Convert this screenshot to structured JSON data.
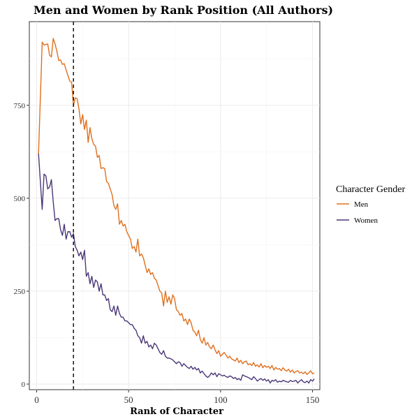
{
  "chart_data": {
    "type": "line",
    "title": "Men and Women by Rank Position (All Authors)",
    "xlabel": "Rank of Character",
    "ylabel": "",
    "xlim": [
      -4,
      154
    ],
    "ylim": [
      -15,
      975
    ],
    "xticks": [
      0,
      50,
      100,
      150
    ],
    "yticks": [
      0,
      250,
      500,
      750
    ],
    "grid": true,
    "reference_line": {
      "x": 20,
      "style": "dashed"
    },
    "legend": {
      "title": "Character Gender",
      "position": "right"
    },
    "series": [
      {
        "name": "Men",
        "color": "#e0701e",
        "points": [
          [
            1,
            620
          ],
          [
            3,
            920
          ],
          [
            4,
            912
          ],
          [
            6,
            915
          ],
          [
            7,
            885
          ],
          [
            8,
            880
          ],
          [
            9,
            930
          ],
          [
            10,
            915
          ],
          [
            11,
            895
          ],
          [
            12,
            870
          ],
          [
            13,
            872
          ],
          [
            14,
            860
          ],
          [
            15,
            862
          ],
          [
            16,
            845
          ],
          [
            17,
            830
          ],
          [
            18,
            815
          ],
          [
            19,
            812
          ],
          [
            20,
            750
          ],
          [
            21,
            770
          ],
          [
            22,
            768
          ],
          [
            23,
            740
          ],
          [
            24,
            700
          ],
          [
            25,
            725
          ],
          [
            26,
            685
          ],
          [
            27,
            710
          ],
          [
            28,
            650
          ],
          [
            29,
            690
          ],
          [
            30,
            660
          ],
          [
            31,
            645
          ],
          [
            32,
            640
          ],
          [
            33,
            610
          ],
          [
            34,
            615
          ],
          [
            35,
            580
          ],
          [
            36,
            582
          ],
          [
            37,
            580
          ],
          [
            38,
            545
          ],
          [
            39,
            540
          ],
          [
            40,
            525
          ],
          [
            41,
            510
          ],
          [
            42,
            480
          ],
          [
            43,
            470
          ],
          [
            44,
            485
          ],
          [
            45,
            430
          ],
          [
            46,
            440
          ],
          [
            47,
            425
          ],
          [
            48,
            430
          ],
          [
            49,
            410
          ],
          [
            50,
            400
          ],
          [
            51,
            390
          ],
          [
            52,
            365
          ],
          [
            53,
            370
          ],
          [
            54,
            355
          ],
          [
            55,
            390
          ],
          [
            56,
            345
          ],
          [
            57,
            350
          ],
          [
            58,
            340
          ],
          [
            59,
            320
          ],
          [
            60,
            300
          ],
          [
            61,
            310
          ],
          [
            62,
            295
          ],
          [
            63,
            300
          ],
          [
            64,
            285
          ],
          [
            65,
            280
          ],
          [
            66,
            265
          ],
          [
            67,
            250
          ],
          [
            68,
            245
          ],
          [
            69,
            210
          ],
          [
            70,
            250
          ],
          [
            71,
            220
          ],
          [
            72,
            235
          ],
          [
            73,
            215
          ],
          [
            74,
            240
          ],
          [
            75,
            230
          ],
          [
            76,
            200
          ],
          [
            77,
            195
          ],
          [
            78,
            185
          ],
          [
            79,
            190
          ],
          [
            80,
            170
          ],
          [
            81,
            175
          ],
          [
            82,
            160
          ],
          [
            83,
            175
          ],
          [
            84,
            165
          ],
          [
            85,
            145
          ],
          [
            86,
            140
          ],
          [
            87,
            130
          ],
          [
            88,
            145
          ],
          [
            89,
            120
          ],
          [
            90,
            110
          ],
          [
            91,
            125
          ],
          [
            92,
            105
          ],
          [
            93,
            112
          ],
          [
            94,
            100
          ],
          [
            95,
            95
          ],
          [
            96,
            105
          ],
          [
            97,
            92
          ],
          [
            98,
            82
          ],
          [
            99,
            90
          ],
          [
            100,
            75
          ],
          [
            101,
            80
          ],
          [
            102,
            85
          ],
          [
            103,
            78
          ],
          [
            104,
            70
          ],
          [
            105,
            75
          ],
          [
            106,
            68
          ],
          [
            107,
            65
          ],
          [
            108,
            62
          ],
          [
            109,
            70
          ],
          [
            110,
            58
          ],
          [
            111,
            64
          ],
          [
            112,
            55
          ],
          [
            113,
            60
          ],
          [
            114,
            62
          ],
          [
            115,
            52
          ],
          [
            116,
            55
          ],
          [
            117,
            50
          ],
          [
            118,
            58
          ],
          [
            119,
            48
          ],
          [
            120,
            52
          ],
          [
            121,
            46
          ],
          [
            122,
            55
          ],
          [
            123,
            44
          ],
          [
            124,
            50
          ],
          [
            125,
            45
          ],
          [
            126,
            48
          ],
          [
            127,
            42
          ],
          [
            128,
            50
          ],
          [
            129,
            38
          ],
          [
            130,
            45
          ],
          [
            131,
            40
          ],
          [
            132,
            42
          ],
          [
            133,
            36
          ],
          [
            134,
            44
          ],
          [
            135,
            38
          ],
          [
            136,
            35
          ],
          [
            137,
            40
          ],
          [
            138,
            32
          ],
          [
            139,
            38
          ],
          [
            140,
            30
          ],
          [
            141,
            34
          ],
          [
            142,
            36
          ],
          [
            143,
            30
          ],
          [
            144,
            32
          ],
          [
            145,
            28
          ],
          [
            146,
            33
          ],
          [
            147,
            26
          ],
          [
            148,
            30
          ],
          [
            149,
            36
          ],
          [
            150,
            28
          ],
          [
            151,
            30
          ]
        ]
      },
      {
        "name": "Women",
        "color": "#4b3778",
        "points": [
          [
            1,
            620
          ],
          [
            3,
            470
          ],
          [
            4,
            565
          ],
          [
            5,
            560
          ],
          [
            6,
            525
          ],
          [
            7,
            530
          ],
          [
            8,
            550
          ],
          [
            9,
            490
          ],
          [
            10,
            440
          ],
          [
            11,
            445
          ],
          [
            12,
            445
          ],
          [
            13,
            415
          ],
          [
            14,
            400
          ],
          [
            15,
            430
          ],
          [
            16,
            390
          ],
          [
            17,
            410
          ],
          [
            18,
            410
          ],
          [
            19,
            395
          ],
          [
            20,
            405
          ],
          [
            21,
            370
          ],
          [
            22,
            360
          ],
          [
            23,
            345
          ],
          [
            24,
            355
          ],
          [
            25,
            335
          ],
          [
            26,
            360
          ],
          [
            27,
            290
          ],
          [
            28,
            300
          ],
          [
            29,
            270
          ],
          [
            30,
            290
          ],
          [
            31,
            260
          ],
          [
            32,
            280
          ],
          [
            33,
            275
          ],
          [
            34,
            250
          ],
          [
            35,
            270
          ],
          [
            36,
            240
          ],
          [
            37,
            240
          ],
          [
            38,
            225
          ],
          [
            39,
            230
          ],
          [
            40,
            200
          ],
          [
            41,
            195
          ],
          [
            42,
            210
          ],
          [
            43,
            185
          ],
          [
            44,
            210
          ],
          [
            45,
            190
          ],
          [
            46,
            180
          ],
          [
            47,
            180
          ],
          [
            48,
            170
          ],
          [
            49,
            170
          ],
          [
            50,
            165
          ],
          [
            51,
            160
          ],
          [
            52,
            160
          ],
          [
            53,
            150
          ],
          [
            54,
            145
          ],
          [
            55,
            130
          ],
          [
            56,
            125
          ],
          [
            57,
            110
          ],
          [
            58,
            130
          ],
          [
            59,
            110
          ],
          [
            60,
            115
          ],
          [
            61,
            100
          ],
          [
            62,
            105
          ],
          [
            63,
            95
          ],
          [
            64,
            110
          ],
          [
            65,
            105
          ],
          [
            66,
            95
          ],
          [
            67,
            85
          ],
          [
            68,
            80
          ],
          [
            69,
            90
          ],
          [
            70,
            75
          ],
          [
            71,
            70
          ],
          [
            72,
            70
          ],
          [
            73,
            68
          ],
          [
            74,
            65
          ],
          [
            75,
            60
          ],
          [
            76,
            55
          ],
          [
            77,
            60
          ],
          [
            78,
            58
          ],
          [
            79,
            48
          ],
          [
            80,
            55
          ],
          [
            81,
            50
          ],
          [
            82,
            45
          ],
          [
            83,
            42
          ],
          [
            84,
            48
          ],
          [
            85,
            40
          ],
          [
            86,
            45
          ],
          [
            87,
            38
          ],
          [
            88,
            42
          ],
          [
            89,
            30
          ],
          [
            90,
            35
          ],
          [
            91,
            28
          ],
          [
            92,
            22
          ],
          [
            93,
            18
          ],
          [
            94,
            22
          ],
          [
            95,
            30
          ],
          [
            96,
            25
          ],
          [
            97,
            30
          ],
          [
            98,
            20
          ],
          [
            99,
            28
          ],
          [
            100,
            25
          ],
          [
            101,
            22
          ],
          [
            102,
            24
          ],
          [
            103,
            20
          ],
          [
            104,
            18
          ],
          [
            105,
            22
          ],
          [
            106,
            20
          ],
          [
            107,
            15
          ],
          [
            108,
            18
          ],
          [
            109,
            12
          ],
          [
            110,
            15
          ],
          [
            111,
            10
          ],
          [
            112,
            25
          ],
          [
            113,
            22
          ],
          [
            114,
            20
          ],
          [
            115,
            18
          ],
          [
            116,
            15
          ],
          [
            117,
            12
          ],
          [
            118,
            20
          ],
          [
            119,
            15
          ],
          [
            120,
            8
          ],
          [
            121,
            12
          ],
          [
            122,
            15
          ],
          [
            123,
            10
          ],
          [
            124,
            14
          ],
          [
            125,
            8
          ],
          [
            126,
            12
          ],
          [
            127,
            3
          ],
          [
            128,
            10
          ],
          [
            129,
            8
          ],
          [
            130,
            12
          ],
          [
            131,
            5
          ],
          [
            132,
            8
          ],
          [
            133,
            6
          ],
          [
            134,
            10
          ],
          [
            135,
            8
          ],
          [
            136,
            6
          ],
          [
            137,
            5
          ],
          [
            138,
            10
          ],
          [
            139,
            7
          ],
          [
            140,
            8
          ],
          [
            141,
            10
          ],
          [
            142,
            3
          ],
          [
            143,
            8
          ],
          [
            144,
            12
          ],
          [
            145,
            6
          ],
          [
            146,
            4
          ],
          [
            147,
            8
          ],
          [
            148,
            3
          ],
          [
            149,
            12
          ],
          [
            150,
            8
          ],
          [
            151,
            14
          ]
        ]
      }
    ]
  }
}
